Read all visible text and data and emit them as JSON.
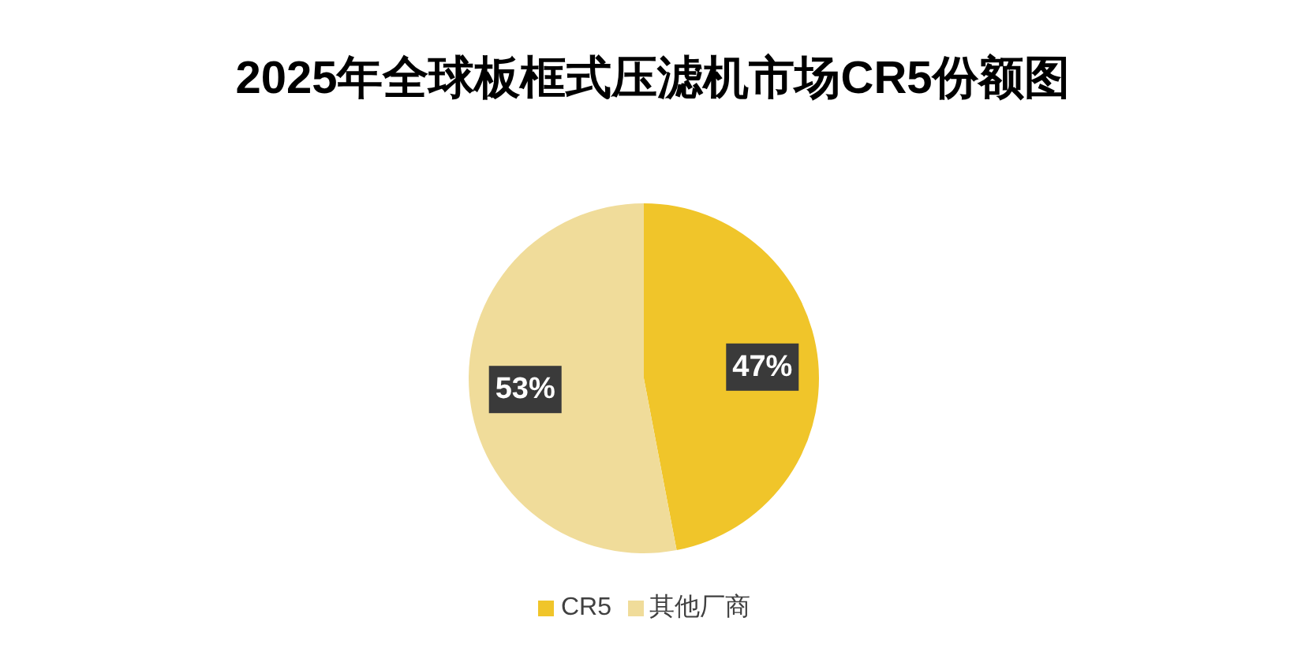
{
  "chart_data": {
    "type": "pie",
    "title": "2025年全球板框式压滤机市场CR5份额图",
    "categories": [
      "CR5",
      "其他厂商"
    ],
    "values": [
      47,
      53
    ],
    "colors": [
      "#f0c52a",
      "#f0dc9a"
    ],
    "value_labels": [
      "47%",
      "53%"
    ],
    "legend": "bottom"
  }
}
